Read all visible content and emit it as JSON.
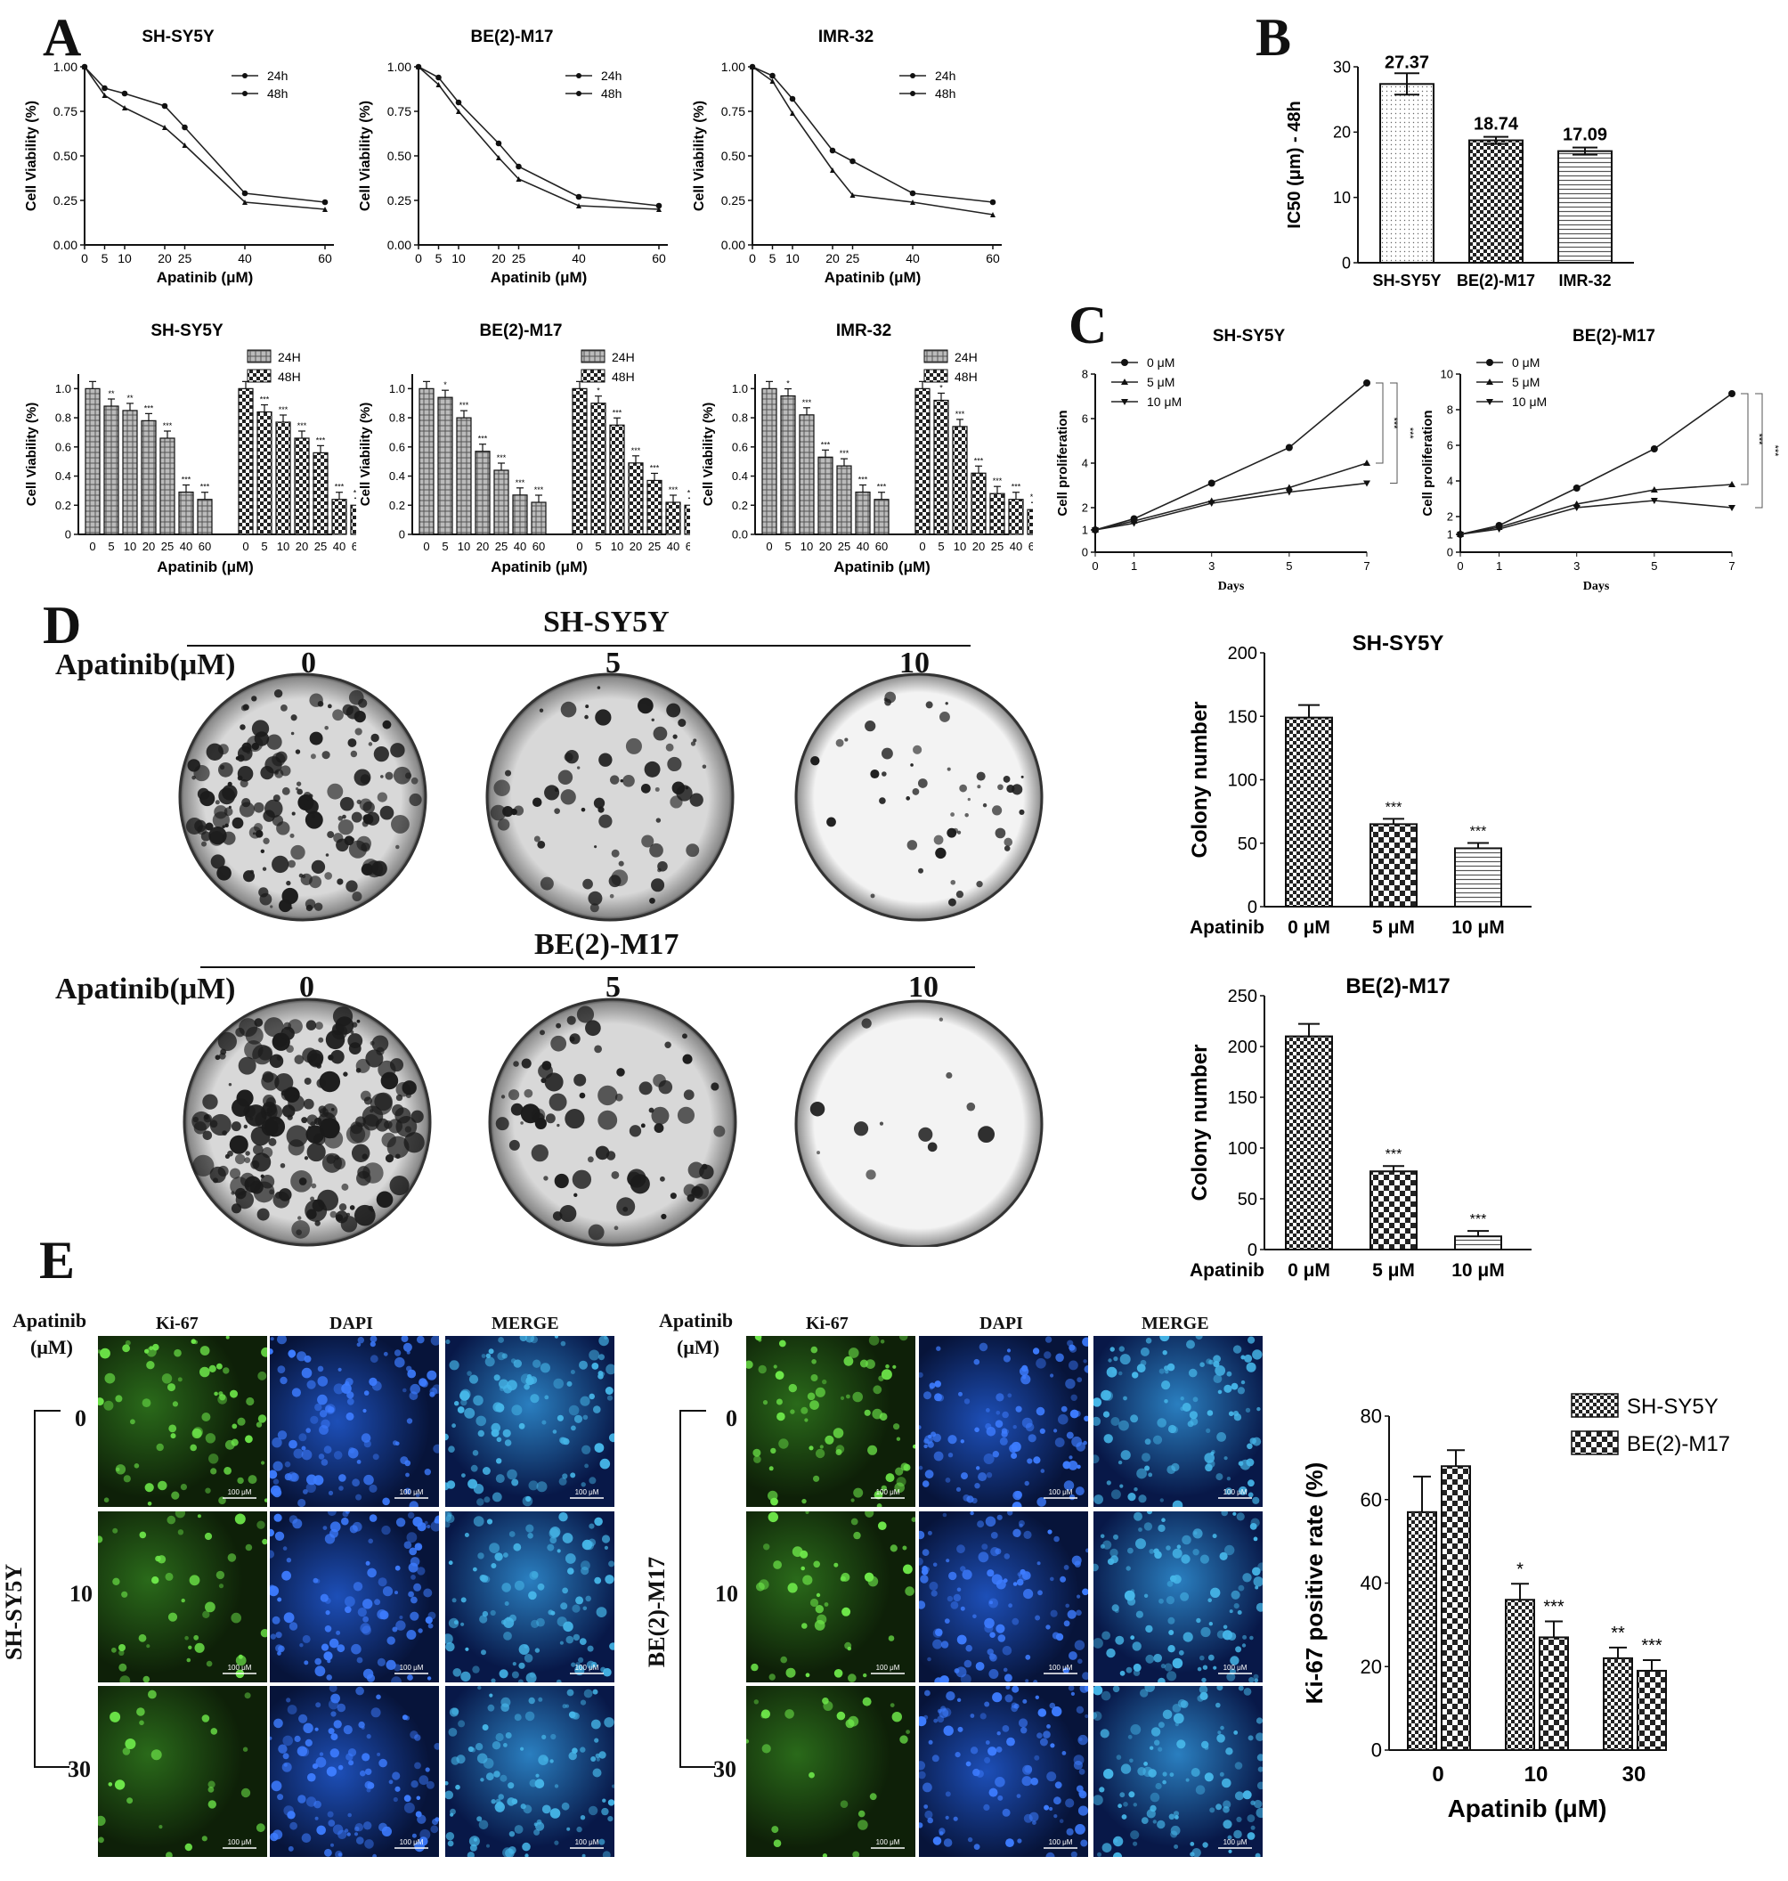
{
  "panels": {
    "A": "A",
    "B": "B",
    "C": "C",
    "D": "D",
    "E": "E"
  },
  "common": {
    "cell_viability_label": "Cell Viability (%)",
    "apatinib_um": "Apatinib (μM)",
    "days": "Days",
    "cell_proliferation": "Cell proliferation",
    "colony_number": "Colony number",
    "apatinib": "Apatinib",
    "apatinib_concentration": "Apatinib(μM)",
    "ki67_rate": "Ki-67 positive rate (%)",
    "sig3": "***"
  },
  "chart_data": [
    {
      "id": "A-line-SHSY5Y",
      "type": "line",
      "title": "SH-SY5Y",
      "xlabel": "Apatinib (μM)",
      "ylabel": "Cell Viability (%)",
      "x": [
        0,
        5,
        10,
        20,
        25,
        40,
        60
      ],
      "ylim": [
        0,
        1
      ],
      "yticks": [
        "0.00",
        "0.25",
        "0.50",
        "0.75",
        "1.00"
      ],
      "series": [
        {
          "name": "24h",
          "values": [
            1.0,
            0.88,
            0.85,
            0.78,
            0.66,
            0.29,
            0.24
          ]
        },
        {
          "name": "48h",
          "values": [
            1.0,
            0.84,
            0.77,
            0.66,
            0.56,
            0.24,
            0.2
          ]
        }
      ]
    },
    {
      "id": "A-line-BE2M17",
      "type": "line",
      "title": "BE(2)-M17",
      "xlabel": "Apatinib (μM)",
      "ylabel": "Cell Viability (%)",
      "x": [
        0,
        5,
        10,
        20,
        25,
        40,
        60
      ],
      "ylim": [
        0,
        1
      ],
      "yticks": [
        "0.00",
        "0.25",
        "0.50",
        "0.75",
        "1.00"
      ],
      "series": [
        {
          "name": "24h",
          "values": [
            1.0,
            0.94,
            0.8,
            0.57,
            0.44,
            0.27,
            0.22
          ]
        },
        {
          "name": "48h",
          "values": [
            1.0,
            0.9,
            0.75,
            0.49,
            0.37,
            0.22,
            0.2
          ]
        }
      ]
    },
    {
      "id": "A-line-IMR32",
      "type": "line",
      "title": "IMR-32",
      "xlabel": "Apatinib (μM)",
      "ylabel": "Cell Viability (%)",
      "x": [
        0,
        5,
        10,
        20,
        25,
        40,
        60
      ],
      "ylim": [
        0,
        1
      ],
      "yticks": [
        "0.00",
        "0.25",
        "0.50",
        "0.75",
        "1.00"
      ],
      "series": [
        {
          "name": "24h",
          "values": [
            1.0,
            0.95,
            0.82,
            0.53,
            0.47,
            0.29,
            0.24
          ]
        },
        {
          "name": "48h",
          "values": [
            1.0,
            0.92,
            0.74,
            0.42,
            0.28,
            0.24,
            0.17
          ]
        }
      ]
    },
    {
      "id": "A-bar-SHSY5Y",
      "type": "bar",
      "title": "SH-SY5Y",
      "xlabel": "Apatinib (μM)",
      "ylabel": "Cell Viability (%)",
      "categories": [
        "0",
        "5",
        "10",
        "20",
        "25",
        "40",
        "60"
      ],
      "ylim": [
        0,
        1.1
      ],
      "yticks": [
        "0",
        "0.2",
        "0.4",
        "0.6",
        "0.8",
        "1.0"
      ],
      "series": [
        {
          "name": "24H",
          "values": [
            1.0,
            0.88,
            0.85,
            0.78,
            0.66,
            0.29,
            0.24
          ],
          "sig": [
            "",
            "**",
            "**",
            "***",
            "***",
            "***",
            "***"
          ]
        },
        {
          "name": "48H",
          "values": [
            1.0,
            0.84,
            0.77,
            0.66,
            0.56,
            0.24,
            0.2
          ],
          "sig": [
            "",
            "***",
            "***",
            "***",
            "***",
            "***",
            "***"
          ]
        }
      ]
    },
    {
      "id": "A-bar-BE2M17",
      "type": "bar",
      "title": "BE(2)-M17",
      "xlabel": "Apatinib (μM)",
      "ylabel": "Cell Viability (%)",
      "categories": [
        "0",
        "5",
        "10",
        "20",
        "25",
        "40",
        "60"
      ],
      "ylim": [
        0,
        1.1
      ],
      "yticks": [
        "0",
        "0.2",
        "0.4",
        "0.6",
        "0.8",
        "1.0"
      ],
      "series": [
        {
          "name": "24H",
          "values": [
            1.0,
            0.94,
            0.8,
            0.57,
            0.44,
            0.27,
            0.22
          ],
          "sig": [
            "",
            "*",
            "***",
            "***",
            "***",
            "***",
            "***"
          ]
        },
        {
          "name": "48H",
          "values": [
            1.0,
            0.9,
            0.75,
            0.49,
            0.37,
            0.22,
            0.2
          ],
          "sig": [
            "",
            "*",
            "***",
            "***",
            "***",
            "***",
            "***"
          ]
        }
      ]
    },
    {
      "id": "A-bar-IMR32",
      "type": "bar",
      "title": "IMR-32",
      "xlabel": "Apatinib (μM)",
      "ylabel": "Cell Viability (%)",
      "categories": [
        "0",
        "5",
        "10",
        "20",
        "25",
        "40",
        "60"
      ],
      "ylim": [
        0,
        1.1
      ],
      "yticks": [
        "0.0",
        "0.2",
        "0.4",
        "0.6",
        "0.8",
        "1.0"
      ],
      "series": [
        {
          "name": "24H",
          "values": [
            1.0,
            0.95,
            0.82,
            0.53,
            0.47,
            0.29,
            0.24
          ],
          "sig": [
            "",
            "*",
            "***",
            "***",
            "***",
            "***",
            "***"
          ]
        },
        {
          "name": "48H",
          "values": [
            1.0,
            0.92,
            0.74,
            0.42,
            0.28,
            0.24,
            0.17
          ],
          "sig": [
            "",
            "*",
            "***",
            "***",
            "***",
            "***",
            "***"
          ]
        }
      ]
    },
    {
      "id": "B",
      "type": "bar",
      "xlabel": "",
      "ylabel": "IC50 (μm) - 48h",
      "categories": [
        "SH-SY5Y",
        "BE(2)-M17",
        "IMR-32"
      ],
      "values": [
        27.37,
        18.74,
        17.09
      ],
      "labels": [
        "27.37",
        "18.74",
        "17.09"
      ],
      "ylim": [
        0,
        30
      ],
      "yticks": [
        "0",
        "10",
        "20",
        "30"
      ]
    },
    {
      "id": "C-SHSY5Y",
      "type": "line",
      "title": "SH-SY5Y",
      "xlabel": "Days",
      "ylabel": "Cell proliferation",
      "x": [
        0,
        1,
        3,
        5,
        7
      ],
      "ylim": [
        0,
        8
      ],
      "yticks": [
        "0",
        "1",
        "2",
        "4",
        "6",
        "8"
      ],
      "series": [
        {
          "name": "0 μM",
          "values": [
            1.0,
            1.5,
            3.1,
            4.7,
            7.6
          ]
        },
        {
          "name": "5 μM",
          "values": [
            1.0,
            1.4,
            2.3,
            2.9,
            4.0
          ]
        },
        {
          "name": "10 μM",
          "values": [
            1.0,
            1.3,
            2.2,
            2.7,
            3.1
          ]
        }
      ]
    },
    {
      "id": "C-BE2M17",
      "type": "line",
      "title": "BE(2)-M17",
      "xlabel": "Days",
      "ylabel": "Cell proliferation",
      "x": [
        0,
        1,
        3,
        5,
        7
      ],
      "ylim": [
        0,
        10
      ],
      "yticks": [
        "0",
        "1",
        "2",
        "4",
        "6",
        "8",
        "10"
      ],
      "series": [
        {
          "name": "0 μM",
          "values": [
            1.0,
            1.5,
            3.6,
            5.8,
            8.9
          ]
        },
        {
          "name": "5 μM",
          "values": [
            1.0,
            1.4,
            2.7,
            3.5,
            3.8
          ]
        },
        {
          "name": "10 μM",
          "values": [
            1.0,
            1.3,
            2.5,
            2.9,
            2.5
          ]
        }
      ]
    },
    {
      "id": "D-SHSY5Y",
      "type": "bar",
      "title": "SH-SY5Y",
      "xlabel": "Apatinib",
      "ylabel": "Colony number",
      "categories": [
        "0 μM",
        "5 μM",
        "10 μM"
      ],
      "values": [
        149,
        65,
        46
      ],
      "ylim": [
        0,
        200
      ],
      "yticks": [
        "0",
        "50",
        "100",
        "150",
        "200"
      ],
      "sig": [
        "",
        "***",
        "***"
      ]
    },
    {
      "id": "D-BE2M17",
      "type": "bar",
      "title": "BE(2)-M17",
      "xlabel": "Apatinib",
      "ylabel": "Colony number",
      "categories": [
        "0 μM",
        "5 μM",
        "10 μM"
      ],
      "values": [
        210,
        77,
        13
      ],
      "ylim": [
        0,
        250
      ],
      "yticks": [
        "0",
        "50",
        "100",
        "150",
        "200",
        "250"
      ],
      "sig": [
        "",
        "***",
        "***"
      ]
    },
    {
      "id": "E",
      "type": "bar",
      "xlabel": "Apatinib (μM)",
      "ylabel": "Ki-67 positive rate (%)",
      "categories": [
        "0",
        "10",
        "30"
      ],
      "ylim": [
        0,
        80
      ],
      "yticks": [
        "0",
        "20",
        "40",
        "60",
        "80"
      ],
      "series": [
        {
          "name": "SH-SY5Y",
          "values": [
            57,
            36,
            22
          ],
          "sig": [
            "",
            "*",
            "**"
          ]
        },
        {
          "name": "BE(2)-M17",
          "values": [
            68,
            27,
            19
          ],
          "sig": [
            "",
            "***",
            "***"
          ]
        }
      ]
    }
  ],
  "dishes": {
    "sh_title": "SH-SY5Y",
    "be_title": "BE(2)-M17",
    "doses": [
      "0",
      "5",
      "10"
    ]
  },
  "micro": {
    "cols": [
      "Ki-67",
      "DAPI",
      "MERGE"
    ],
    "apatinib": "Apatinib",
    "unit": "(μM)",
    "doses": [
      "0",
      "10",
      "30"
    ],
    "sh_label": "SH-SY5Y",
    "be_label": "BE(2)-M17",
    "scale": "100 μM"
  }
}
